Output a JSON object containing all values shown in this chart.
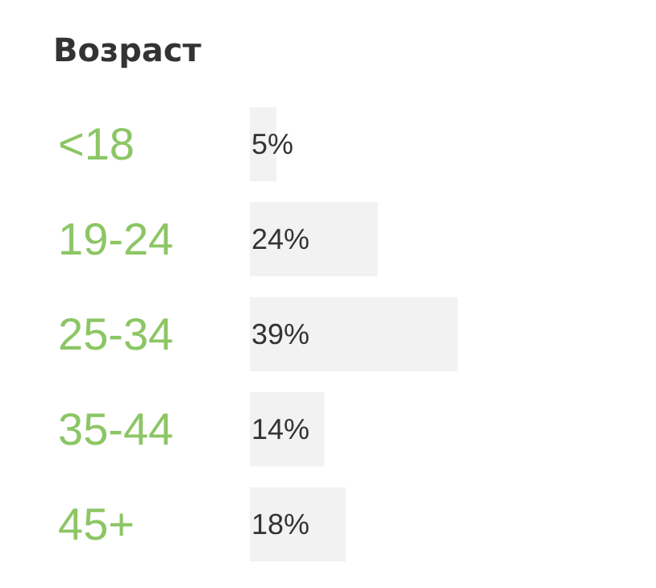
{
  "chart_data": {
    "type": "bar",
    "orientation": "horizontal",
    "title": "Возраст",
    "categories": [
      "<18",
      "19-24",
      "25-34",
      "35-44",
      "45+"
    ],
    "values": [
      5,
      24,
      39,
      14,
      18
    ],
    "value_labels": [
      "5%",
      "24%",
      "39%",
      "14%",
      "18%"
    ],
    "color": "#f2f2f2"
  }
}
